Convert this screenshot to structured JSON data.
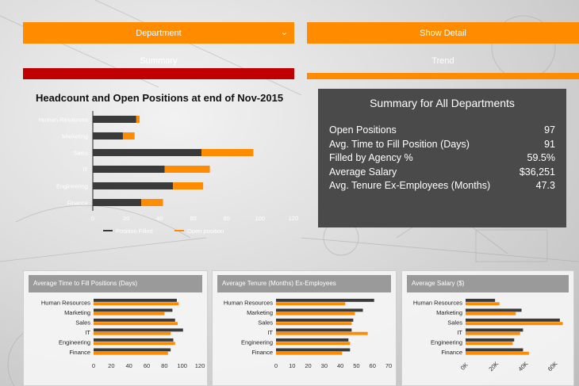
{
  "controls": {
    "department_label": "Department",
    "show_detail_label": "Show Detail"
  },
  "tabs": {
    "summary": "Summary",
    "trend": "Trend"
  },
  "summary": {
    "title": "Summary for All Departments",
    "rows": [
      {
        "label": "Open Positions",
        "value": "97"
      },
      {
        "label": "Avg. Time to Fill Position (Days)",
        "value": "91"
      },
      {
        "label": "Filled by Agency %",
        "value": "59.5%"
      },
      {
        "label": "Average Salary",
        "value": "$36,251"
      },
      {
        "label": "Avg. Tenure Ex-Employees (Months)",
        "value": "47.3"
      }
    ]
  },
  "colors": {
    "dark": "#3a3a3a",
    "orange": "#ff8c00",
    "red": "#c00000"
  },
  "chart_data": [
    {
      "type": "bar",
      "orientation": "horizontal",
      "stacked": true,
      "title": "Headcount and Open Positions at end of Nov-2015",
      "categories": [
        "Human Resources",
        "Marketing",
        "Sales",
        "IT",
        "Engineering",
        "Finance"
      ],
      "series": [
        {
          "name": "Position Filled",
          "color": "#3a3a3a",
          "values": [
            26,
            18,
            65,
            43,
            48,
            29
          ]
        },
        {
          "name": "Open position",
          "color": "#ff8c00",
          "values": [
            2,
            7,
            31,
            27,
            18,
            13
          ]
        }
      ],
      "xlim": [
        0,
        120
      ],
      "xticks": [
        0,
        20,
        40,
        60,
        80,
        100,
        120
      ],
      "legend": "bottom"
    },
    {
      "type": "bar",
      "orientation": "horizontal",
      "title": "Average Time to Fill Positions (Days)",
      "categories": [
        "Human Resources",
        "Marketing",
        "Sales",
        "IT",
        "Engineering",
        "Finance"
      ],
      "series": [
        {
          "color": "#3a3a3a",
          "values": [
            94,
            89,
            92,
            101,
            90,
            87
          ]
        },
        {
          "color": "#ff8c00",
          "values": [
            96,
            80,
            95,
            87,
            92,
            84
          ]
        }
      ],
      "xlim": [
        0,
        120
      ],
      "xticks": [
        0,
        20,
        40,
        60,
        80,
        100,
        120
      ]
    },
    {
      "type": "bar",
      "orientation": "horizontal",
      "title": "Average Tenure (Months) Ex-Employees",
      "categories": [
        "Human Resources",
        "Marketing",
        "Sales",
        "IT",
        "Engineering",
        "Finance"
      ],
      "series": [
        {
          "color": "#3a3a3a",
          "values": [
            61,
            54,
            48,
            47,
            45,
            46
          ]
        },
        {
          "color": "#ff8c00",
          "values": [
            43,
            49,
            47,
            57,
            46,
            41
          ]
        }
      ],
      "xlim": [
        0,
        70
      ],
      "xticks": [
        0,
        10,
        20,
        30,
        40,
        50,
        60,
        70
      ]
    },
    {
      "type": "bar",
      "orientation": "horizontal",
      "title": "Average Salary ($)",
      "categories": [
        "Human Resources",
        "Marketing",
        "Sales",
        "IT",
        "Engineering",
        "Finance"
      ],
      "series": [
        {
          "color": "#3a3a3a",
          "values": [
            20000,
            38000,
            64000,
            39000,
            33000,
            39000
          ]
        },
        {
          "color": "#ff8c00",
          "values": [
            23000,
            34000,
            66000,
            37000,
            32000,
            43000
          ]
        }
      ],
      "xlim": [
        0,
        70000
      ],
      "xticks": [
        "0K",
        "20K",
        "40K",
        "60K"
      ]
    }
  ]
}
